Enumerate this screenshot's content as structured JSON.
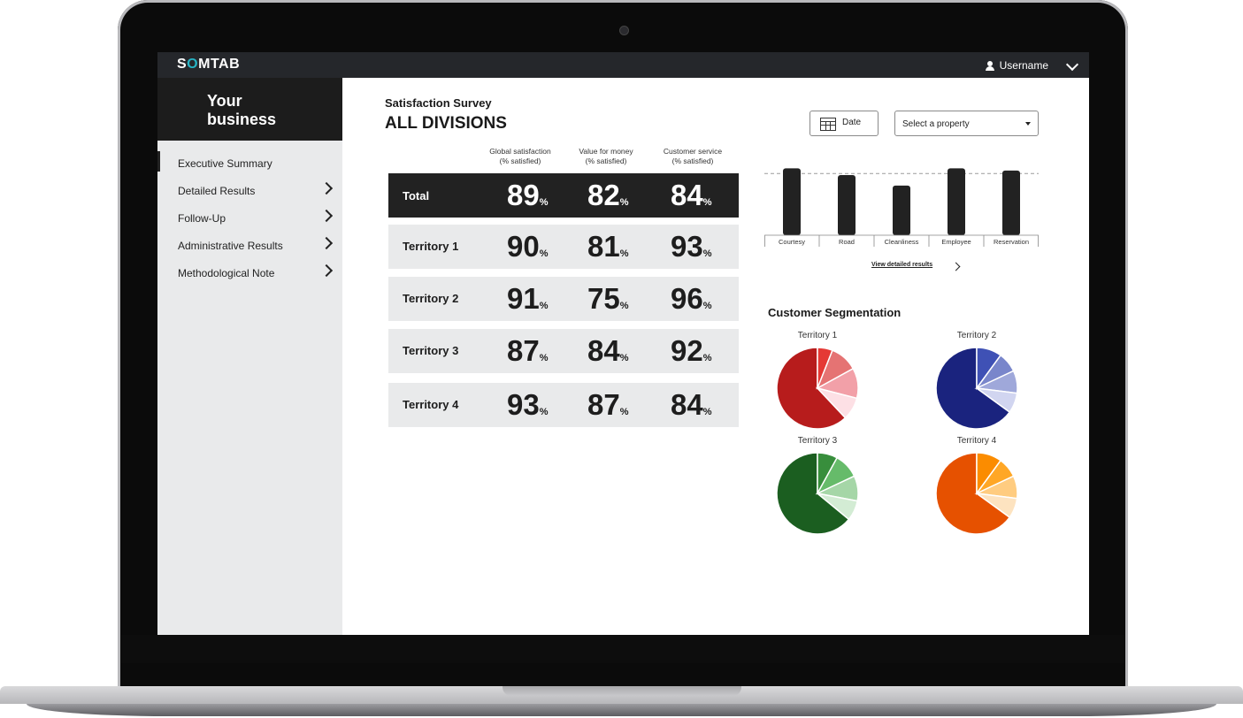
{
  "header": {
    "logo_pre": "S",
    "logo_o": "O",
    "logo_post": "MTAB",
    "username": "Username"
  },
  "sidebar": {
    "brand": "Your business",
    "items": [
      {
        "label": "Executive Summary",
        "active": true
      },
      {
        "label": "Detailed Results"
      },
      {
        "label": "Follow-Up"
      },
      {
        "label": "Administrative Results"
      },
      {
        "label": "Methodological Note"
      }
    ]
  },
  "main": {
    "subtitle": "Satisfaction Survey",
    "title": "ALL DIVISIONS",
    "columns": [
      {
        "line1": "Global satisfaction",
        "line2": "(% satisfied)"
      },
      {
        "line1": "Value for money",
        "line2": "(% satisfied)"
      },
      {
        "line1": "Customer service",
        "line2": "(% satisfied)"
      }
    ],
    "rows": [
      {
        "name": "Total",
        "values": [
          "89",
          "82",
          "84"
        ]
      },
      {
        "name": "Territory 1",
        "values": [
          "90",
          "81",
          "93"
        ]
      },
      {
        "name": "Territory 2",
        "values": [
          "91",
          "75",
          "96"
        ]
      },
      {
        "name": "Territory 3",
        "values": [
          "87",
          "84",
          "92"
        ]
      },
      {
        "name": "Territory 4",
        "values": [
          "93",
          "87",
          "84"
        ]
      }
    ],
    "percent_sign": "%"
  },
  "filters": {
    "date_label": "Date",
    "property_placeholder": "Select a property"
  },
  "chart_data": [
    {
      "type": "bar",
      "categories": [
        "Courtesy",
        "Road",
        "Cleanliness",
        "Employee",
        "Reservation"
      ],
      "values": [
        89,
        80,
        66,
        89,
        86
      ],
      "ylim": [
        0,
        100
      ],
      "reference_line": 82,
      "colors": {
        "bar": "#222222",
        "reference": "#9a9a9a"
      }
    },
    {
      "type": "pie",
      "title": "Customer Segmentation",
      "pies": [
        {
          "name": "Territory 1",
          "values": [
            62,
            6,
            11,
            12,
            9
          ],
          "colors": [
            "#b71c1c",
            "#e53935",
            "#e57373",
            "#f2a0a8",
            "#fde0e5"
          ]
        },
        {
          "name": "Territory 2",
          "values": [
            65,
            10,
            8,
            9,
            8
          ],
          "colors": [
            "#1a237e",
            "#3f51b5",
            "#7986cb",
            "#9fa8da",
            "#d1d5f0"
          ]
        },
        {
          "name": "Territory 3",
          "values": [
            64,
            8,
            10,
            10,
            8
          ],
          "colors": [
            "#1b5e20",
            "#388e3c",
            "#66bb6a",
            "#a5d6a7",
            "#d3ecd4"
          ]
        },
        {
          "name": "Territory 4",
          "values": [
            65,
            10,
            8,
            9,
            8
          ],
          "colors": [
            "#e65100",
            "#fb8c00",
            "#ffa726",
            "#ffcc80",
            "#fde3c0"
          ]
        }
      ]
    }
  ],
  "links": {
    "view_detailed": "View detailed results"
  }
}
